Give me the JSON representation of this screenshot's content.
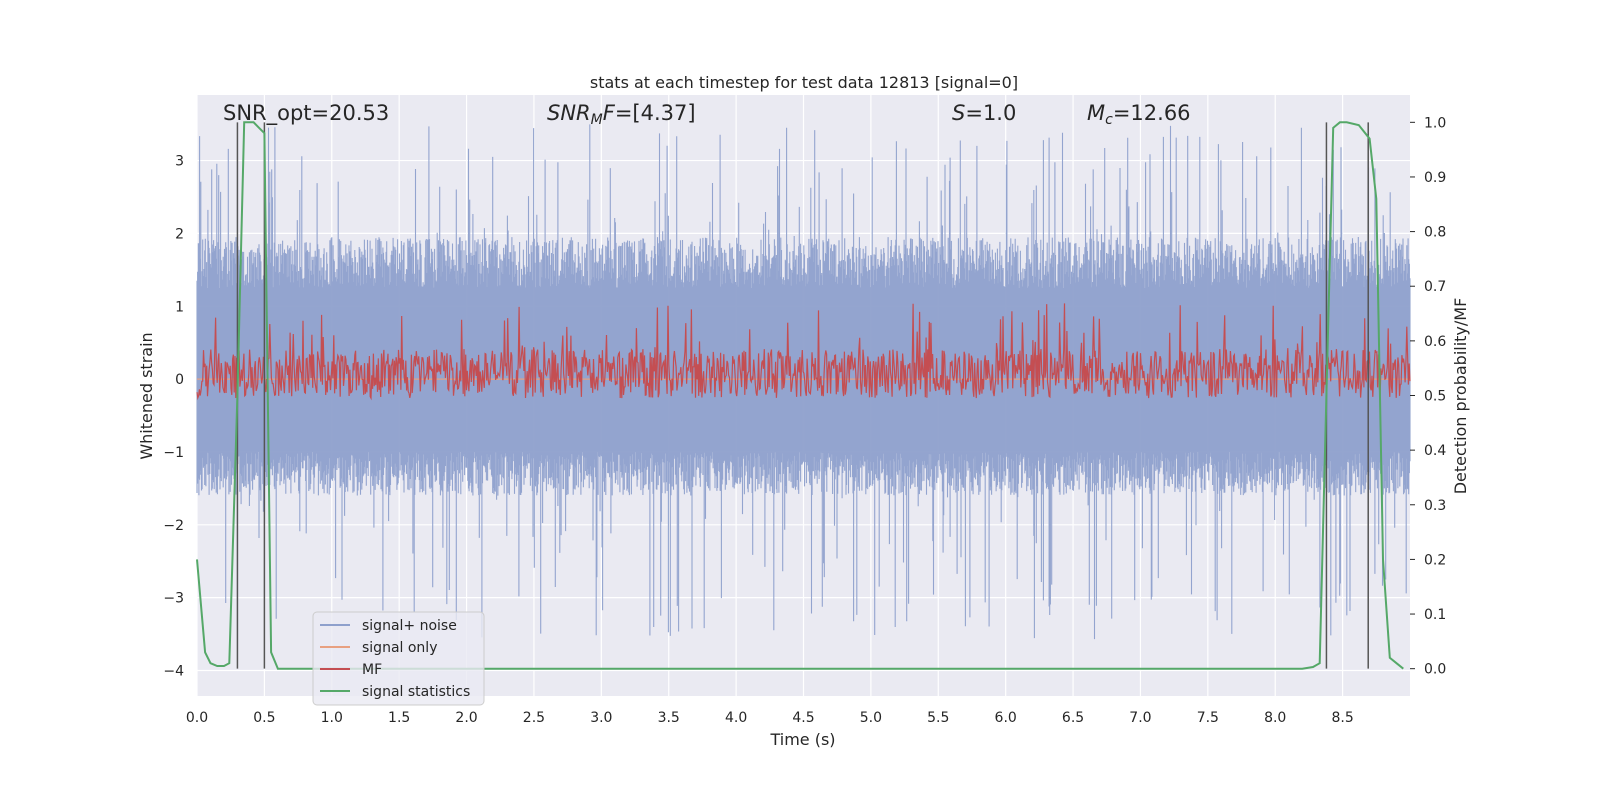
{
  "chart_data": {
    "type": "line",
    "title": "stats at each timestep for test data 12813 [signal=0]",
    "xlabel": "Time (s)",
    "ylabel": "Whitened strain",
    "ylabel_right": "Detection probability/MF",
    "xlim": [
      0.0,
      9.0
    ],
    "ylim": [
      -4.35,
      3.9
    ],
    "ylim_right": [
      -0.05,
      1.05
    ],
    "x_ticks": [
      "0.0",
      "0.5",
      "1.0",
      "1.5",
      "2.0",
      "2.5",
      "3.0",
      "3.5",
      "4.0",
      "4.5",
      "5.0",
      "5.5",
      "6.0",
      "6.5",
      "7.0",
      "7.5",
      "8.0",
      "8.5"
    ],
    "x_tick_values": [
      0.0,
      0.5,
      1.0,
      1.5,
      2.0,
      2.5,
      3.0,
      3.5,
      4.0,
      4.5,
      5.0,
      5.5,
      6.0,
      6.5,
      7.0,
      7.5,
      8.0,
      8.5
    ],
    "y_ticks": [
      "−4",
      "−3",
      "−2",
      "−1",
      "0",
      "1",
      "2",
      "3"
    ],
    "y_tick_values": [
      -4,
      -3,
      -2,
      -1,
      0,
      1,
      2,
      3
    ],
    "y_right_ticks": [
      "0.0",
      "0.1",
      "0.2",
      "0.3",
      "0.4",
      "0.5",
      "0.6",
      "0.7",
      "0.8",
      "0.9",
      "1.0"
    ],
    "y_right_tick_values": [
      0.0,
      0.1,
      0.2,
      0.3,
      0.4,
      0.5,
      0.6,
      0.7,
      0.8,
      0.9,
      1.0
    ],
    "annotations": [
      {
        "id": "snr-opt",
        "prefix": "SNR_opt",
        "value": "=20.53"
      },
      {
        "id": "snr-mf",
        "prefix": "SNR",
        "sub": "M",
        "suffix": "F",
        "value": "=[4.37]"
      },
      {
        "id": "s-val",
        "prefix": "S",
        "value": "=1.0"
      },
      {
        "id": "mc-val",
        "prefix": "M",
        "sub": "c",
        "value": "=12.66"
      }
    ],
    "legend": {
      "position": "lower-left",
      "entries": [
        {
          "label": "signal+ noise",
          "color": "#8ea0cc"
        },
        {
          "label": "signal only",
          "color": "#e8a080"
        },
        {
          "label": "MF",
          "color": "#c44e52"
        },
        {
          "label": "signal statistics",
          "color": "#55a868"
        }
      ]
    },
    "vertical_lines_x": [
      0.3,
      0.5,
      8.38,
      8.69
    ],
    "series": [
      {
        "name": "signal+ noise",
        "axis": "left",
        "color": "#8ea0cc",
        "description": "whitened noise, dense trace",
        "envelope": {
          "core_high": 1.25,
          "core_low": -1.0,
          "spike_max": 3.5,
          "spike_min": -3.6
        }
      },
      {
        "name": "signal only",
        "axis": "left",
        "color": "#e8a080",
        "values_all_zero": true
      },
      {
        "name": "MF",
        "axis": "right",
        "color": "#c44e52",
        "envelope": {
          "base": 0.505,
          "core_high": 0.585,
          "spike_max": 0.67
        }
      },
      {
        "name": "signal statistics",
        "axis": "right",
        "color": "#55a868",
        "x": [
          0.0,
          0.06,
          0.1,
          0.15,
          0.2,
          0.24,
          0.3,
          0.35,
          0.38,
          0.42,
          0.46,
          0.5,
          0.55,
          0.6,
          0.65,
          0.8,
          1.0,
          2.0,
          3.0,
          4.0,
          5.0,
          6.0,
          7.0,
          8.0,
          8.2,
          8.28,
          8.33,
          8.38,
          8.43,
          8.48,
          8.53,
          8.62,
          8.7,
          8.75,
          8.8,
          8.85,
          8.9,
          8.95
        ],
        "values": [
          0.2,
          0.03,
          0.01,
          0.005,
          0.005,
          0.01,
          0.5,
          1.0,
          1.0,
          1.0,
          0.99,
          0.98,
          0.03,
          0.0,
          0.0,
          0.0,
          0.0,
          0.0,
          0.0,
          0.0,
          0.0,
          0.0,
          0.0,
          0.0,
          0.0,
          0.003,
          0.01,
          0.5,
          0.99,
          1.0,
          1.0,
          0.995,
          0.97,
          0.86,
          0.2,
          0.02,
          0.01,
          0.0
        ]
      }
    ]
  }
}
